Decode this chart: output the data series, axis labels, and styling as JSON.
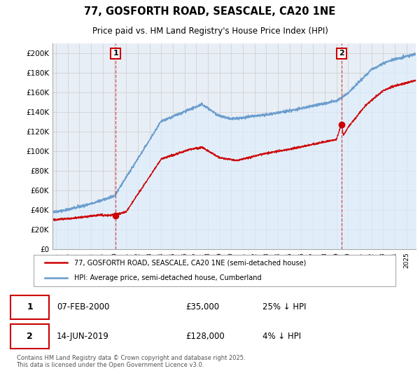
{
  "title": "77, GOSFORTH ROAD, SEASCALE, CA20 1NE",
  "subtitle": "Price paid vs. HM Land Registry's House Price Index (HPI)",
  "ylabel_ticks": [
    "£0",
    "£20K",
    "£40K",
    "£60K",
    "£80K",
    "£100K",
    "£120K",
    "£140K",
    "£160K",
    "£180K",
    "£200K"
  ],
  "ylim": [
    0,
    210000
  ],
  "xlim_start": 1994.7,
  "xlim_end": 2025.8,
  "legend_line1": "77, GOSFORTH ROAD, SEASCALE, CA20 1NE (semi-detached house)",
  "legend_line2": "HPI: Average price, semi-detached house, Cumberland",
  "transaction1_date": "07-FEB-2000",
  "transaction1_price": 35000,
  "transaction1_label": "25% ↓ HPI",
  "transaction1_x": 2000.1,
  "transaction2_date": "14-JUN-2019",
  "transaction2_price": 128000,
  "transaction2_label": "4% ↓ HPI",
  "transaction2_x": 2019.45,
  "footnote": "Contains HM Land Registry data © Crown copyright and database right 2025.\nThis data is licensed under the Open Government Licence v3.0.",
  "red_color": "#cc0000",
  "blue_color": "#6699cc",
  "blue_fill_color": "#ddeeff",
  "grid_color": "#cccccc",
  "background_color": "#ffffff",
  "plot_bg_color": "#e8eef5"
}
